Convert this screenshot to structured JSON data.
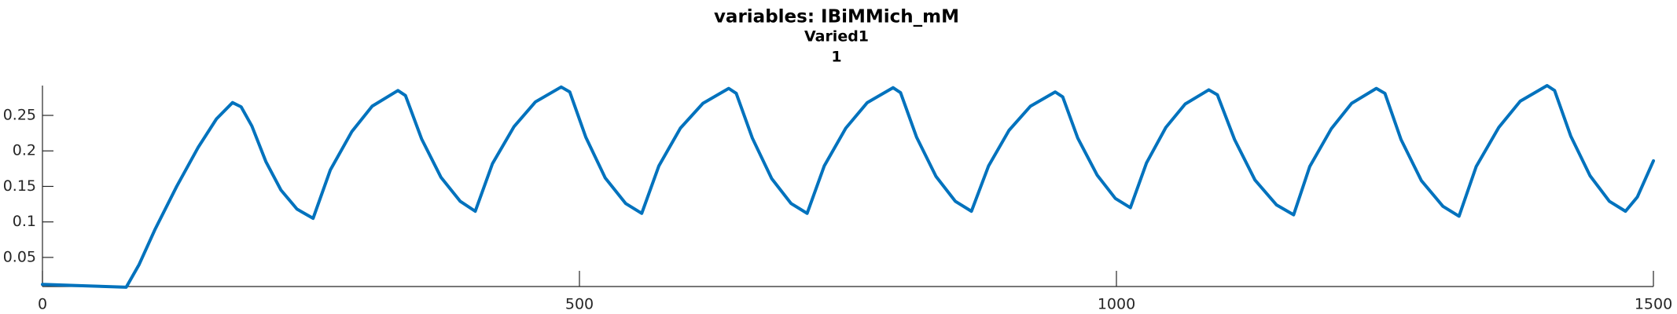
{
  "chart_data": {
    "type": "line",
    "title": "variables: IBiMMich_mM",
    "subtitle": [
      "Varied1",
      "1"
    ],
    "x": [
      0,
      40,
      78,
      90,
      105,
      125,
      145,
      162,
      177,
      185,
      195,
      208,
      222,
      237,
      252,
      268,
      288,
      307,
      331,
      338,
      353,
      371,
      389,
      403,
      419,
      439,
      459,
      483,
      491,
      506,
      524,
      543,
      558,
      574,
      594,
      615,
      639,
      646,
      661,
      679,
      697,
      712,
      728,
      748,
      768,
      792,
      799,
      814,
      832,
      850,
      865,
      881,
      900,
      920,
      943,
      950,
      964,
      982,
      999,
      1013,
      1028,
      1046,
      1064,
      1086,
      1094,
      1110,
      1129,
      1149,
      1165,
      1180,
      1200,
      1219,
      1242,
      1250,
      1265,
      1284,
      1304,
      1319,
      1335,
      1356,
      1376,
      1401,
      1408,
      1423,
      1441,
      1459,
      1474,
      1485,
      1500
    ],
    "series": [
      {
        "name": "IBiMMich_mM",
        "color": "#0072bd",
        "values": [
          0.012,
          0.01,
          0.008,
          0.04,
          0.09,
          0.15,
          0.205,
          0.245,
          0.268,
          0.262,
          0.235,
          0.185,
          0.145,
          0.118,
          0.105,
          0.173,
          0.227,
          0.263,
          0.285,
          0.278,
          0.217,
          0.163,
          0.129,
          0.115,
          0.182,
          0.234,
          0.269,
          0.29,
          0.283,
          0.219,
          0.162,
          0.126,
          0.112,
          0.179,
          0.232,
          0.267,
          0.288,
          0.281,
          0.218,
          0.161,
          0.126,
          0.112,
          0.179,
          0.232,
          0.268,
          0.289,
          0.282,
          0.219,
          0.164,
          0.129,
          0.115,
          0.179,
          0.229,
          0.263,
          0.283,
          0.276,
          0.218,
          0.166,
          0.133,
          0.12,
          0.183,
          0.233,
          0.266,
          0.286,
          0.279,
          0.216,
          0.159,
          0.124,
          0.11,
          0.178,
          0.231,
          0.267,
          0.288,
          0.281,
          0.216,
          0.158,
          0.122,
          0.108,
          0.178,
          0.233,
          0.27,
          0.292,
          0.285,
          0.221,
          0.165,
          0.129,
          0.115,
          0.135,
          0.186
        ]
      }
    ],
    "xlim": [
      0,
      1500
    ],
    "xticks": [
      0,
      500,
      1000,
      1500
    ],
    "ylim": [
      0.009,
      0.292
    ],
    "yticks": [
      0.05,
      0.1,
      0.15,
      0.2,
      0.25
    ]
  }
}
